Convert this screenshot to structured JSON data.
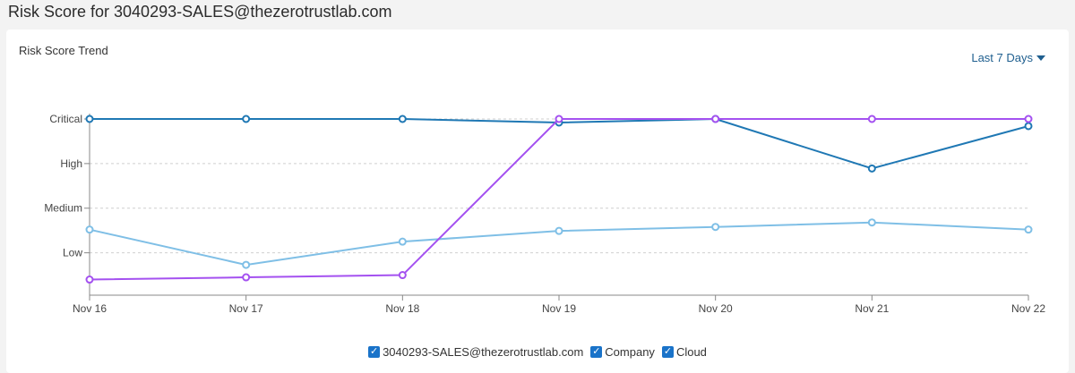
{
  "page": {
    "title": "Risk Score for 3040293-SALES@thezerotrustlab.com"
  },
  "card": {
    "title": "Risk Score Trend",
    "range_label": "Last 7 Days"
  },
  "legend": {
    "items": [
      {
        "label": "3040293-SALES@thezerotrustlab.com",
        "checked": true
      },
      {
        "label": "Company",
        "checked": true
      },
      {
        "label": "Cloud",
        "checked": true
      }
    ]
  },
  "colors": {
    "user": "#a451f0",
    "company": "#1f78b4",
    "cloud": "#7fbfe6",
    "checkbox": "#1a73c9"
  },
  "chart_data": {
    "type": "line",
    "title": "",
    "categories": [
      "Nov 16",
      "Nov 17",
      "Nov 18",
      "Nov 19",
      "Nov 20",
      "Nov 21",
      "Nov 22"
    ],
    "y_tick_labels": [
      "Low",
      "Medium",
      "High",
      "Critical"
    ],
    "y_tick_values": [
      1,
      2,
      3,
      4
    ],
    "ylim": [
      0.05,
      4
    ],
    "grid": true,
    "legend_position": "bottom-center",
    "series": [
      {
        "name": "3040293-SALES@thezerotrustlab.com",
        "color": "#a451f0",
        "values": [
          0.4,
          0.45,
          0.5,
          4.0,
          4.0,
          4.0,
          4.0
        ]
      },
      {
        "name": "Company",
        "color": "#1f78b4",
        "values": [
          4.0,
          4.0,
          4.0,
          3.92,
          4.0,
          2.89,
          3.84
        ]
      },
      {
        "name": "Cloud",
        "color": "#7fbfe6",
        "values": [
          1.52,
          0.73,
          1.25,
          1.49,
          1.58,
          1.68,
          1.52
        ]
      }
    ]
  }
}
